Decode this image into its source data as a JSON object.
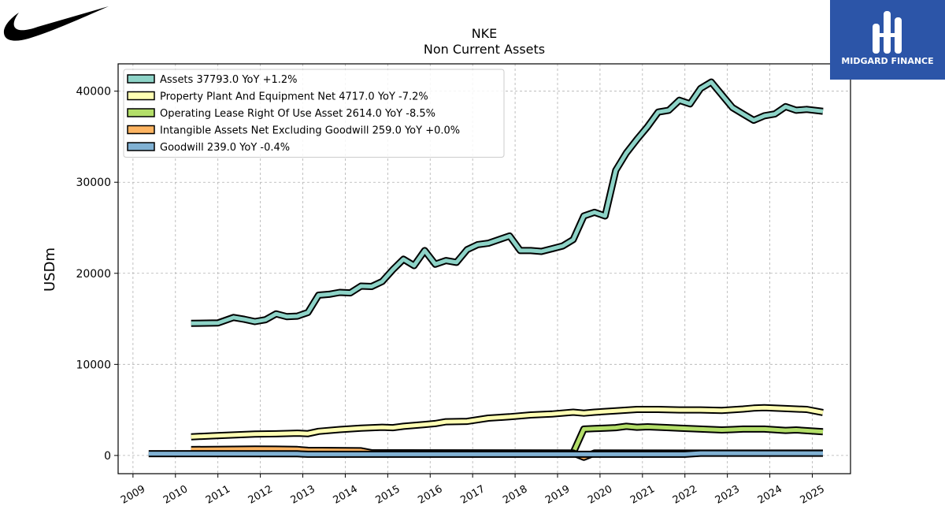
{
  "branding": {
    "left_logo": "nike-swoosh-logo",
    "right_logo_text": "MIDGARD FINANCE"
  },
  "chart_data": {
    "type": "line",
    "title": "NKE",
    "subtitle": "Non Current  Assets",
    "ylabel": "USDm",
    "xlabel": "",
    "xlim": [
      2008.65,
      2025.9
    ],
    "ylim": [
      -2000,
      43000
    ],
    "yticks": [
      0,
      10000,
      20000,
      30000,
      40000
    ],
    "xticks": [
      2009,
      2010,
      2011,
      2012,
      2013,
      2014,
      2015,
      2016,
      2017,
      2018,
      2019,
      2020,
      2021,
      2022,
      2023,
      2024,
      2025
    ],
    "grid": true,
    "legend_position": "top-left",
    "series": [
      {
        "name": "Assets  37793.0 YoY +1.2%",
        "color": "#8dd3c7",
        "points": [
          [
            2010.37,
            14500
          ],
          [
            2011.0,
            14550
          ],
          [
            2011.37,
            15150
          ],
          [
            2011.62,
            14950
          ],
          [
            2011.87,
            14700
          ],
          [
            2012.12,
            14900
          ],
          [
            2012.37,
            15550
          ],
          [
            2012.62,
            15250
          ],
          [
            2012.87,
            15300
          ],
          [
            2013.12,
            15700
          ],
          [
            2013.37,
            17600
          ],
          [
            2013.62,
            17700
          ],
          [
            2013.87,
            17900
          ],
          [
            2014.12,
            17850
          ],
          [
            2014.37,
            18600
          ],
          [
            2014.62,
            18550
          ],
          [
            2014.87,
            19100
          ],
          [
            2015.12,
            20400
          ],
          [
            2015.37,
            21550
          ],
          [
            2015.62,
            20850
          ],
          [
            2015.87,
            22500
          ],
          [
            2016.12,
            21000
          ],
          [
            2016.37,
            21400
          ],
          [
            2016.62,
            21200
          ],
          [
            2016.87,
            22600
          ],
          [
            2017.12,
            23150
          ],
          [
            2017.37,
            23300
          ],
          [
            2017.62,
            23700
          ],
          [
            2017.87,
            24100
          ],
          [
            2018.12,
            22500
          ],
          [
            2018.37,
            22500
          ],
          [
            2018.62,
            22400
          ],
          [
            2018.87,
            22700
          ],
          [
            2019.12,
            23000
          ],
          [
            2019.37,
            23700
          ],
          [
            2019.62,
            26300
          ],
          [
            2019.87,
            26700
          ],
          [
            2020.12,
            26300
          ],
          [
            2020.37,
            31300
          ],
          [
            2020.62,
            33200
          ],
          [
            2020.87,
            34700
          ],
          [
            2021.12,
            36100
          ],
          [
            2021.37,
            37700
          ],
          [
            2021.62,
            37900
          ],
          [
            2021.87,
            39000
          ],
          [
            2022.12,
            38600
          ],
          [
            2022.37,
            40300
          ],
          [
            2022.62,
            41000
          ],
          [
            2022.87,
            39600
          ],
          [
            2023.12,
            38200
          ],
          [
            2023.37,
            37500
          ],
          [
            2023.62,
            36800
          ],
          [
            2023.87,
            37300
          ],
          [
            2024.12,
            37500
          ],
          [
            2024.37,
            38300
          ],
          [
            2024.62,
            37900
          ],
          [
            2024.87,
            38000
          ],
          [
            2025.25,
            37793
          ]
        ]
      },
      {
        "name": "Property Plant And Equipment Net  4717.0 YoY -7.2%",
        "color": "#ffffb3",
        "points": [
          [
            2010.37,
            2050
          ],
          [
            2010.87,
            2150
          ],
          [
            2011.37,
            2250
          ],
          [
            2011.87,
            2350
          ],
          [
            2012.37,
            2380
          ],
          [
            2012.87,
            2450
          ],
          [
            2013.12,
            2400
          ],
          [
            2013.37,
            2650
          ],
          [
            2013.87,
            2850
          ],
          [
            2014.37,
            3000
          ],
          [
            2014.87,
            3100
          ],
          [
            2015.12,
            3050
          ],
          [
            2015.37,
            3200
          ],
          [
            2015.87,
            3400
          ],
          [
            2016.12,
            3500
          ],
          [
            2016.37,
            3700
          ],
          [
            2016.87,
            3750
          ],
          [
            2017.37,
            4100
          ],
          [
            2017.87,
            4250
          ],
          [
            2018.37,
            4450
          ],
          [
            2018.87,
            4550
          ],
          [
            2019.37,
            4750
          ],
          [
            2019.62,
            4650
          ],
          [
            2019.87,
            4750
          ],
          [
            2020.37,
            4900
          ],
          [
            2020.87,
            5050
          ],
          [
            2021.37,
            5050
          ],
          [
            2021.87,
            5000
          ],
          [
            2022.37,
            5000
          ],
          [
            2022.87,
            4950
          ],
          [
            2023.37,
            5100
          ],
          [
            2023.62,
            5200
          ],
          [
            2023.87,
            5250
          ],
          [
            2024.37,
            5150
          ],
          [
            2024.87,
            5050
          ],
          [
            2025.25,
            4717
          ]
        ]
      },
      {
        "name": "Operating Lease Right Of Use Asset  2614.0 YoY -8.5%",
        "color": "#b3de69",
        "points": [
          [
            2019.37,
            300
          ],
          [
            2019.62,
            2900
          ],
          [
            2019.87,
            2950
          ],
          [
            2020.12,
            3000
          ],
          [
            2020.37,
            3050
          ],
          [
            2020.62,
            3200
          ],
          [
            2020.87,
            3100
          ],
          [
            2021.12,
            3150
          ],
          [
            2021.62,
            3050
          ],
          [
            2021.87,
            3000
          ],
          [
            2022.37,
            2900
          ],
          [
            2022.87,
            2800
          ],
          [
            2023.12,
            2850
          ],
          [
            2023.37,
            2900
          ],
          [
            2023.87,
            2900
          ],
          [
            2024.37,
            2750
          ],
          [
            2024.62,
            2800
          ],
          [
            2025.25,
            2614
          ]
        ]
      },
      {
        "name": "Intangible Assets Net Excluding Goodwill  259.0 YoY +0.0%",
        "color": "#fdb462",
        "points": [
          [
            2010.37,
            650
          ],
          [
            2011.37,
            680
          ],
          [
            2011.87,
            700
          ],
          [
            2012.37,
            690
          ],
          [
            2012.87,
            660
          ],
          [
            2013.12,
            560
          ],
          [
            2014.37,
            520
          ],
          [
            2014.62,
            300
          ],
          [
            2019.37,
            270
          ],
          [
            2019.62,
            -200
          ],
          [
            2019.87,
            270
          ],
          [
            2025.25,
            259
          ]
        ]
      },
      {
        "name": "Goodwill  239.0 YoY -0.4%",
        "color": "#80b1d3",
        "points": [
          [
            2009.37,
            200
          ],
          [
            2012.87,
            180
          ],
          [
            2013.12,
            130
          ],
          [
            2022.0,
            130
          ],
          [
            2022.37,
            240
          ],
          [
            2025.25,
            239
          ]
        ]
      }
    ]
  }
}
